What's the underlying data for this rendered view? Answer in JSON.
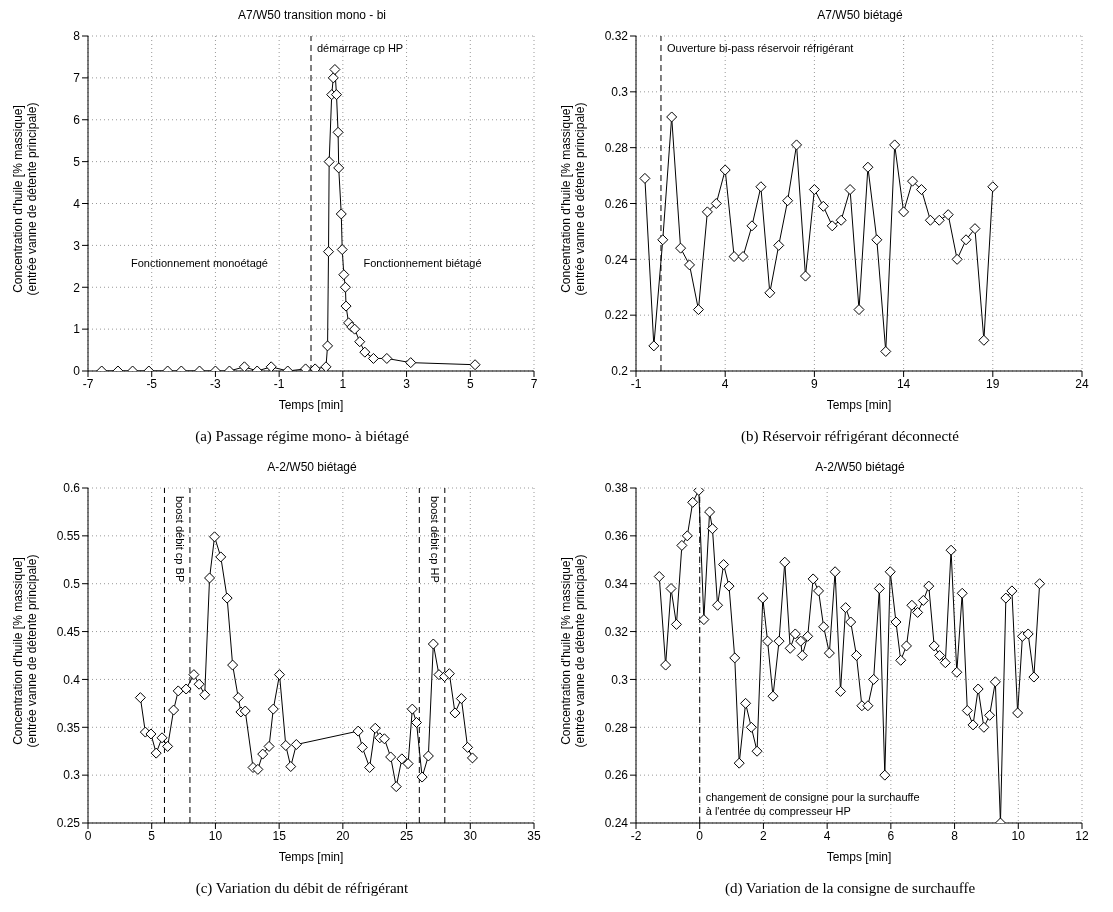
{
  "chart_data": [
    {
      "type": "line",
      "title": "A7/W50 transition mono - bi",
      "xlabel": "Temps [min]",
      "ylabel": "Concentration d'huile [% massique]\n(entrée vanne de détente principale)",
      "color": "#000000",
      "marker": "diamond",
      "line_style": "solid",
      "grid": true,
      "x": [
        -6.57,
        -6.06,
        -5.6,
        -5.09,
        -4.5,
        -4.07,
        -3.5,
        -3.0,
        -2.56,
        -2.09,
        -1.69,
        -1.25,
        -0.73,
        -0.17,
        0.13,
        0.47,
        0.52,
        0.55,
        0.57,
        0.65,
        0.7,
        0.75,
        0.8,
        0.85,
        0.87,
        0.95,
        0.98,
        1.03,
        1.08,
        1.1,
        1.18,
        1.28,
        1.37,
        1.53,
        1.69,
        1.96,
        2.38,
        3.13,
        5.15
      ],
      "values": [
        0,
        0,
        0,
        0,
        0,
        0,
        0,
        0,
        0,
        0.1,
        0,
        0.1,
        0,
        0.05,
        0.05,
        0.1,
        0.6,
        2.85,
        5.0,
        6.6,
        7.0,
        7.2,
        6.6,
        5.7,
        4.85,
        3.75,
        2.9,
        2.3,
        2.0,
        1.55,
        1.15,
        1.05,
        1.0,
        0.7,
        0.45,
        0.3,
        0.3,
        0.2,
        0.15
      ],
      "xlim": [
        -7,
        7
      ],
      "xticks": [
        -7,
        -5,
        -3,
        -1,
        1,
        3,
        5,
        7
      ],
      "ylim": [
        0,
        8
      ],
      "yticks": [
        0,
        1,
        2,
        3,
        4,
        5,
        6,
        7,
        8
      ],
      "ref_lines": [
        {
          "axis": "x",
          "value": 0,
          "label": "démarrage cp HP",
          "line_style": "dashed",
          "color": "#000000"
        }
      ],
      "annotations": [
        "Fonctionnement monoétagé",
        "Fonctionnement biétagé",
        "(a) Passage régime mono- à biétagé"
      ]
    },
    {
      "type": "line",
      "title": "A7/W50 biétagé",
      "xlabel": "Temps [min]",
      "ylabel": "Concentration d'huile [% massique]\n(entrée vanne de détente principale)",
      "color": "#000000",
      "marker": "diamond",
      "line_style": "solid",
      "grid": true,
      "x": [
        -0.5,
        0,
        0.5,
        1,
        1.5,
        2,
        2.5,
        3,
        3.5,
        4,
        4.5,
        5,
        5.5,
        6,
        6.5,
        7,
        7.5,
        8,
        8.5,
        9,
        9.5,
        10,
        10.5,
        11,
        11.5,
        12,
        12.5,
        13,
        13.5,
        14,
        14.5,
        15,
        15.5,
        16,
        16.5,
        17,
        17.5,
        18,
        18.5,
        19
      ],
      "values": [
        0.269,
        0.209,
        0.247,
        0.291,
        0.244,
        0.238,
        0.222,
        0.257,
        0.26,
        0.272,
        0.241,
        0.241,
        0.252,
        0.266,
        0.228,
        0.245,
        0.261,
        0.281,
        0.234,
        0.265,
        0.259,
        0.252,
        0.254,
        0.265,
        0.222,
        0.273,
        0.247,
        0.207,
        0.281,
        0.257,
        0.268,
        0.265,
        0.254,
        0.254,
        0.256,
        0.24,
        0.247,
        0.251,
        0.211,
        0.266
      ],
      "xlim": [
        -1,
        24
      ],
      "xticks": [
        -1,
        4,
        9,
        14,
        19,
        24
      ],
      "ylim": [
        0.2,
        0.32
      ],
      "yticks": [
        0.2,
        0.22,
        0.24,
        0.26,
        0.28,
        0.3,
        0.32
      ],
      "ref_lines": [
        {
          "axis": "x",
          "value": 0.4,
          "label": "Ouverture bi-pass réservoir réfrigérant",
          "line_style": "dashed",
          "color": "#000000"
        }
      ],
      "annotations": [
        "(b) Réservoir réfrigérant déconnecté"
      ]
    },
    {
      "type": "line",
      "title": "A-2/W50 biétagé",
      "xlabel": "Temps [min]",
      "ylabel": "Concentration d'huile [% massique]\n(entrée vanne de détente principale)",
      "color": "#000000",
      "marker": "diamond",
      "line_style": "solid",
      "grid": true,
      "x": [
        4.11,
        4.5,
        4.94,
        5.35,
        5.81,
        6.25,
        6.72,
        7.08,
        7.7,
        8.31,
        8.72,
        9.16,
        9.54,
        9.93,
        10.42,
        10.92,
        11.35,
        11.79,
        12.0,
        12.34,
        12.95,
        13.33,
        13.71,
        14.21,
        14.54,
        15.03,
        15.52,
        15.91,
        16.35,
        21.2,
        21.53,
        22.1,
        22.54,
        22.9,
        23.26,
        23.75,
        24.19,
        24.63,
        25.12,
        25.45,
        25.78,
        26.22,
        26.71,
        27.1,
        27.54,
        27.98,
        28.36,
        28.8,
        29.3,
        29.79,
        30.17
      ],
      "values": [
        0.381,
        0.345,
        0.343,
        0.323,
        0.339,
        0.33,
        0.368,
        0.388,
        0.39,
        0.405,
        0.395,
        0.384,
        0.506,
        0.549,
        0.528,
        0.485,
        0.415,
        0.381,
        0.366,
        0.367,
        0.308,
        0.306,
        0.322,
        0.33,
        0.369,
        0.405,
        0.331,
        0.309,
        0.332,
        0.346,
        0.329,
        0.308,
        0.349,
        0.339,
        0.338,
        0.319,
        0.288,
        0.317,
        0.312,
        0.369,
        0.355,
        0.298,
        0.32,
        0.437,
        0.405,
        0.403,
        0.406,
        0.365,
        0.38,
        0.329,
        0.318
      ],
      "xlim": [
        0,
        35
      ],
      "xticks": [
        0,
        5,
        10,
        15,
        20,
        25,
        30,
        35
      ],
      "ylim": [
        0.25,
        0.6
      ],
      "yticks": [
        0.25,
        0.3,
        0.35,
        0.4,
        0.45,
        0.5,
        0.55,
        0.6
      ],
      "ref_lines": [
        {
          "axis": "x",
          "value": 6,
          "label": "boost débit cp BP",
          "line_style": "dashed",
          "color": "#000000"
        },
        {
          "axis": "x",
          "value": 8,
          "line_style": "dashed",
          "color": "#000000"
        },
        {
          "axis": "x",
          "value": 26,
          "label": "boost débit cp HP",
          "line_style": "dashed",
          "color": "#000000"
        },
        {
          "axis": "x",
          "value": 28,
          "line_style": "dashed",
          "color": "#000000"
        }
      ],
      "annotations": [
        "(c) Variation du débit de réfrigérant"
      ]
    },
    {
      "type": "line",
      "title": "A-2/W50 biétagé",
      "xlabel": "Temps [min]",
      "ylabel": "Concentration d'huile [% massique]\n(entrée vanne de détente principale)",
      "color": "#000000",
      "marker": "diamond",
      "line_style": "solid",
      "grid": true,
      "x": [
        -1.27,
        -1.07,
        -0.9,
        -0.73,
        -0.56,
        -0.39,
        -0.22,
        -0.03,
        0.13,
        0.31,
        0.4,
        0.56,
        0.75,
        0.92,
        1.1,
        1.24,
        1.44,
        1.62,
        1.8,
        1.98,
        2.13,
        2.3,
        2.49,
        2.67,
        2.84,
        3.0,
        3.17,
        3.22,
        3.39,
        3.56,
        3.73,
        3.89,
        4.07,
        4.25,
        4.42,
        4.58,
        4.74,
        4.92,
        5.09,
        5.28,
        5.46,
        5.64,
        5.81,
        5.98,
        6.16,
        6.31,
        6.49,
        6.66,
        6.84,
        7.02,
        7.19,
        7.36,
        7.53,
        7.71,
        7.89,
        8.07,
        8.24,
        8.4,
        8.58,
        8.74,
        8.92,
        9.1,
        9.28,
        9.44,
        9.61,
        9.8,
        9.98,
        10.13,
        10.31,
        10.49,
        10.67
      ],
      "values": [
        0.343,
        0.306,
        0.338,
        0.323,
        0.356,
        0.36,
        0.374,
        0.379,
        0.325,
        0.37,
        0.363,
        0.331,
        0.348,
        0.339,
        0.309,
        0.265,
        0.29,
        0.28,
        0.27,
        0.334,
        0.316,
        0.293,
        0.316,
        0.349,
        0.313,
        0.319,
        0.316,
        0.31,
        0.318,
        0.342,
        0.337,
        0.322,
        0.311,
        0.345,
        0.295,
        0.33,
        0.324,
        0.31,
        0.289,
        0.289,
        0.3,
        0.338,
        0.26,
        0.345,
        0.324,
        0.308,
        0.314,
        0.331,
        0.328,
        0.333,
        0.339,
        0.314,
        0.31,
        0.307,
        0.354,
        0.303,
        0.336,
        0.287,
        0.281,
        0.296,
        0.28,
        0.285,
        0.299,
        0.24,
        0.334,
        0.337,
        0.286,
        0.318,
        0.319,
        0.301,
        0.34
      ],
      "xlim": [
        -2,
        12
      ],
      "xticks": [
        -2,
        0,
        2,
        4,
        6,
        8,
        10,
        12
      ],
      "ylim": [
        0.24,
        0.38
      ],
      "yticks": [
        0.24,
        0.26,
        0.28,
        0.3,
        0.32,
        0.34,
        0.36,
        0.38
      ],
      "ref_lines": [
        {
          "axis": "x",
          "value": 0,
          "label": "changement de consigne pour la surchauffe\nà l'entrée du compresseur HP",
          "line_style": "dashed",
          "color": "#000000"
        }
      ],
      "annotations": [
        "(d) Variation de la consigne de surchauffe"
      ]
    }
  ]
}
